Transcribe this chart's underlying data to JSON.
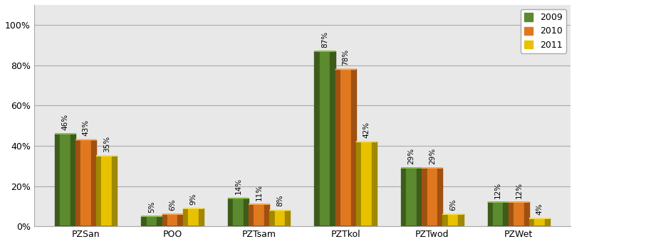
{
  "categories": [
    "PZSan",
    "POO",
    "PZTsam",
    "PZTkol",
    "PZTwod",
    "PZWet"
  ],
  "series": {
    "2009": [
      46,
      5,
      14,
      87,
      29,
      12
    ],
    "2010": [
      43,
      6,
      11,
      78,
      29,
      12
    ],
    "2011": [
      35,
      9,
      8,
      42,
      6,
      4
    ]
  },
  "colors": {
    "2009": {
      "main": "#5C8A2E",
      "light": "#8ABF55",
      "dark": "#3D5C1A"
    },
    "2010": {
      "main": "#E07820",
      "light": "#F5A855",
      "dark": "#A05010"
    },
    "2011": {
      "main": "#E8C200",
      "light": "#F5DC60",
      "dark": "#A08800"
    }
  },
  "ylim": [
    0,
    110
  ],
  "yticks": [
    0,
    20,
    40,
    60,
    80,
    100
  ],
  "yticklabels": [
    "0%",
    "20%",
    "40%",
    "60%",
    "80%",
    "100%"
  ],
  "bar_width": 0.24,
  "legend_labels": [
    "2009",
    "2010",
    "2011"
  ],
  "background_color": "#FFFFFF",
  "plot_background": "#E8E8E8",
  "grid_color": "#AAAAAA",
  "axis_fontsize": 9,
  "legend_fontsize": 9,
  "value_fontsize": 7.5,
  "figsize": [
    9.29,
    3.43
  ],
  "dpi": 100
}
